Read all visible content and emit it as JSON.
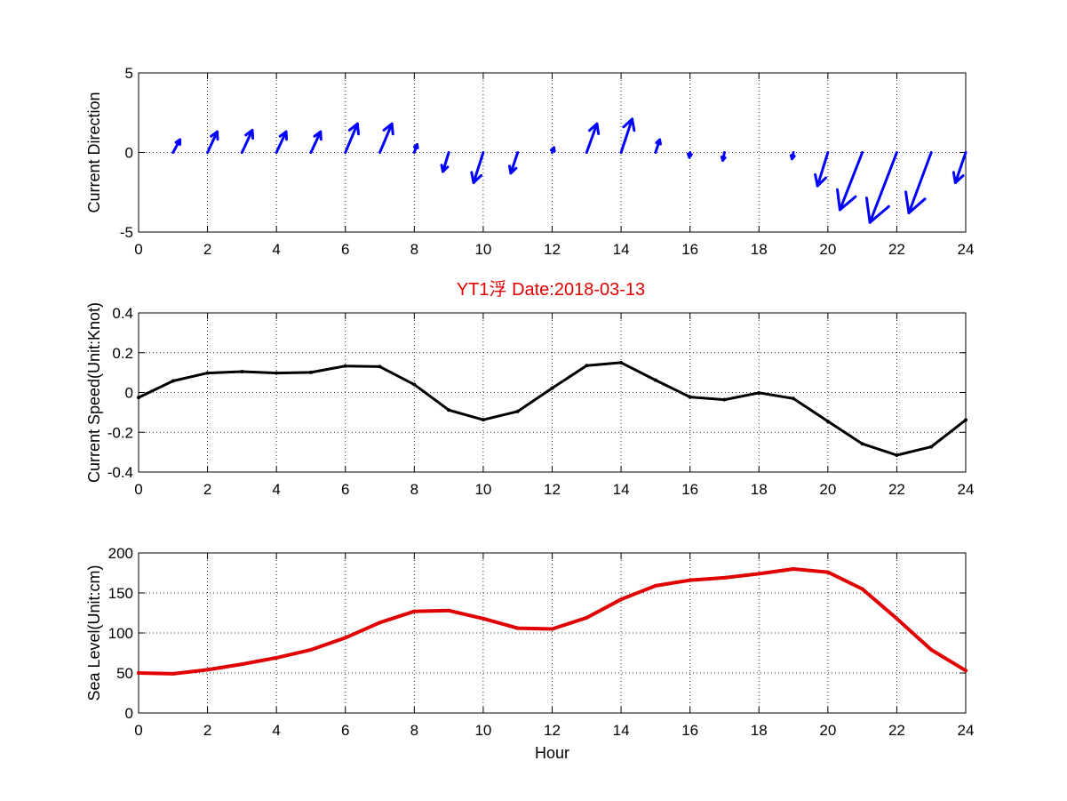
{
  "figure": {
    "title": "YT1浮    Date:2018-03-13",
    "title_color": "#e00000"
  },
  "chart_data": [
    {
      "type": "quiver",
      "xlabel": "",
      "ylabel": "Current Direction",
      "xlim": [
        0,
        24
      ],
      "ylim": [
        -5,
        5
      ],
      "xticks": [
        0,
        2,
        4,
        6,
        8,
        10,
        12,
        14,
        16,
        18,
        20,
        22,
        24
      ],
      "yticks": [
        -5,
        0,
        5
      ],
      "grid": true,
      "color": "#0000ff",
      "vectors": [
        {
          "x": 1,
          "u": 0.2,
          "v": 0.8
        },
        {
          "x": 2,
          "u": 0.28,
          "v": 1.3
        },
        {
          "x": 3,
          "u": 0.3,
          "v": 1.4
        },
        {
          "x": 4,
          "u": 0.28,
          "v": 1.3
        },
        {
          "x": 5,
          "u": 0.28,
          "v": 1.3
        },
        {
          "x": 6,
          "u": 0.35,
          "v": 1.8
        },
        {
          "x": 7,
          "u": 0.35,
          "v": 1.8
        },
        {
          "x": 8,
          "u": 0.08,
          "v": 0.5
        },
        {
          "x": 9,
          "u": -0.17,
          "v": -1.2
        },
        {
          "x": 10,
          "u": -0.28,
          "v": -1.9
        },
        {
          "x": 11,
          "u": -0.2,
          "v": -1.3
        },
        {
          "x": 12,
          "u": 0.05,
          "v": 0.3
        },
        {
          "x": 13,
          "u": 0.3,
          "v": 1.8
        },
        {
          "x": 14,
          "u": 0.32,
          "v": 2.1
        },
        {
          "x": 15,
          "u": 0.12,
          "v": 0.8
        },
        {
          "x": 16,
          "u": -0.02,
          "v": -0.3
        },
        {
          "x": 17,
          "u": -0.05,
          "v": -0.5
        },
        {
          "x": 19,
          "u": -0.04,
          "v": -0.4
        },
        {
          "x": 20,
          "u": -0.3,
          "v": -2.1
        },
        {
          "x": 21,
          "u": -0.65,
          "v": -3.6
        },
        {
          "x": 22,
          "u": -0.78,
          "v": -4.4
        },
        {
          "x": 23,
          "u": -0.65,
          "v": -3.8
        },
        {
          "x": 24,
          "u": -0.3,
          "v": -1.9
        }
      ]
    },
    {
      "type": "line",
      "xlabel": "",
      "ylabel": "Current Speed(Unit:Knot)",
      "xlim": [
        0,
        24
      ],
      "ylim": [
        -0.4,
        0.4
      ],
      "xticks": [
        0,
        2,
        4,
        6,
        8,
        10,
        12,
        14,
        16,
        18,
        20,
        22,
        24
      ],
      "yticks": [
        -0.4,
        -0.2,
        0,
        0.2,
        0.4
      ],
      "grid": true,
      "color": "#000000",
      "x": [
        0,
        1,
        2,
        3,
        4,
        5,
        6,
        7,
        8,
        9,
        10,
        11,
        12,
        13,
        14,
        15,
        16,
        17,
        18,
        19,
        20,
        21,
        22,
        23,
        24
      ],
      "values": [
        -0.025,
        0.058,
        0.098,
        0.105,
        0.098,
        0.101,
        0.133,
        0.13,
        0.04,
        -0.088,
        -0.137,
        -0.095,
        0.022,
        0.135,
        0.15,
        0.062,
        -0.023,
        -0.036,
        -0.002,
        -0.03,
        -0.145,
        -0.258,
        -0.315,
        -0.273,
        -0.138
      ]
    },
    {
      "type": "line",
      "xlabel": "Hour",
      "ylabel": "Sea Level(Unit:cm)",
      "xlim": [
        0,
        24
      ],
      "ylim": [
        0,
        200
      ],
      "xticks": [
        0,
        2,
        4,
        6,
        8,
        10,
        12,
        14,
        16,
        18,
        20,
        22,
        24
      ],
      "yticks": [
        0,
        50,
        100,
        150,
        200
      ],
      "grid": true,
      "color": "#e00000",
      "x": [
        0,
        1,
        2,
        3,
        4,
        5,
        6,
        7,
        8,
        9,
        10,
        11,
        12,
        13,
        14,
        15,
        16,
        17,
        18,
        19,
        20,
        21,
        22,
        23,
        24
      ],
      "values": [
        50,
        49,
        54,
        61,
        69,
        79,
        94,
        113,
        127,
        128,
        118,
        106,
        105,
        119,
        142,
        159,
        166,
        169,
        174,
        180,
        176,
        155,
        118,
        79,
        53
      ]
    }
  ]
}
